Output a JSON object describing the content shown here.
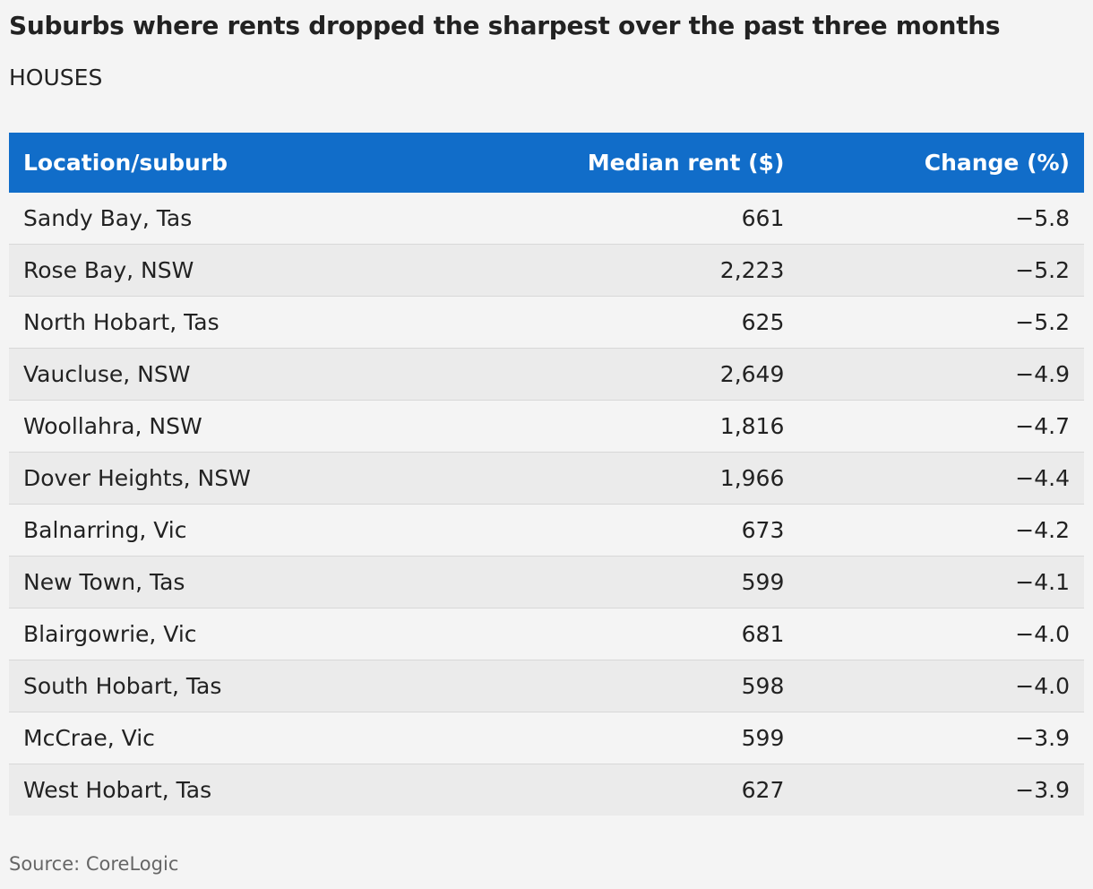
{
  "title": "Suburbs where rents dropped the sharpest over the past three months",
  "subtitle": "HOUSES",
  "table": {
    "header": [
      "Location/suburb",
      "Median rent ($)",
      "Change (%)"
    ],
    "rows": [
      [
        "Sandy Bay, Tas",
        "661",
        "−5.8"
      ],
      [
        "Rose Bay, NSW",
        "2,223",
        "−5.2"
      ],
      [
        "North Hobart, Tas",
        "625",
        "−5.2"
      ],
      [
        "Vaucluse, NSW",
        "2,649",
        "−4.9"
      ],
      [
        "Woollahra, NSW",
        "1,816",
        "−4.7"
      ],
      [
        "Dover Heights, NSW",
        "1,966",
        "−4.4"
      ],
      [
        "Balnarring, Vic",
        "673",
        "−4.2"
      ],
      [
        "New Town, Tas",
        "599",
        "−4.1"
      ],
      [
        "Blairgowrie, Vic",
        "681",
        "−4.0"
      ],
      [
        "South Hobart, Tas",
        "598",
        "−4.0"
      ],
      [
        "McCrae, Vic",
        "599",
        "−3.9"
      ],
      [
        "West Hobart, Tas",
        "627",
        "−3.9"
      ]
    ]
  },
  "source": "Source: CoreLogic"
}
